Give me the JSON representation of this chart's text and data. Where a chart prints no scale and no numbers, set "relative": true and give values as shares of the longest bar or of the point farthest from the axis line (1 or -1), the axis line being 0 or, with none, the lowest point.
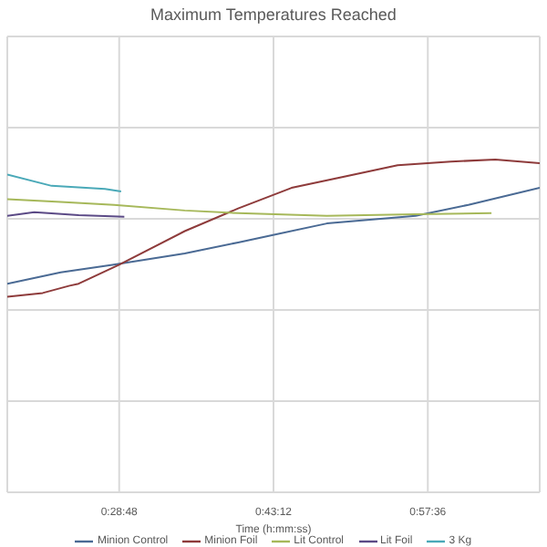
{
  "chart_data": {
    "type": "line",
    "title": "Maximum Temperatures Reached",
    "xlabel": "Time (h:mm:ss)",
    "relative": true,
    "xlim": [
      0.306,
      1.134
    ],
    "xticks": [
      {
        "value": 0.48,
        "label": "0:28:48"
      },
      {
        "value": 0.72,
        "label": "0:43:12"
      },
      {
        "value": 0.96,
        "label": "0:57:36"
      }
    ],
    "grid": true,
    "legend": "bottom",
    "marker": "none",
    "line_style": "solid",
    "series": [
      {
        "name": "Minion Control",
        "color": "#4a6a94",
        "x": [
          0.306,
          0.389,
          0.472,
          0.582,
          0.665,
          0.803,
          0.941,
          1.023,
          1.134
        ],
        "values": [
          0.627,
          0.661,
          0.684,
          0.718,
          0.751,
          0.808,
          0.831,
          0.864,
          0.915
        ]
      },
      {
        "name": "Minion Foil",
        "color": "#8e3b3b",
        "x": [
          0.306,
          0.361,
          0.403,
          0.417,
          0.48,
          0.582,
          0.665,
          0.748,
          0.83,
          0.913,
          0.996,
          1.065,
          1.134
        ],
        "values": [
          0.588,
          0.599,
          0.621,
          0.627,
          0.684,
          0.785,
          0.853,
          0.915,
          0.949,
          0.983,
          0.994,
          1,
          0.989
        ]
      },
      {
        "name": "Lit Control",
        "color": "#a6b85a",
        "x": [
          0.306,
          0.389,
          0.472,
          0.582,
          0.665,
          0.803,
          0.941,
          1.059
        ],
        "values": [
          0.881,
          0.873,
          0.864,
          0.847,
          0.839,
          0.831,
          0.836,
          0.839
        ]
      },
      {
        "name": "Lit Foil",
        "color": "#5b4a86",
        "x": [
          0.306,
          0.348,
          0.417,
          0.488
        ],
        "values": [
          0.831,
          0.842,
          0.833,
          0.828
        ]
      },
      {
        "name": "3 Kg",
        "color": "#4aa9b8",
        "x": [
          0.306,
          0.375,
          0.458,
          0.483
        ],
        "values": [
          0.955,
          0.921,
          0.912,
          0.904
        ]
      }
    ]
  }
}
